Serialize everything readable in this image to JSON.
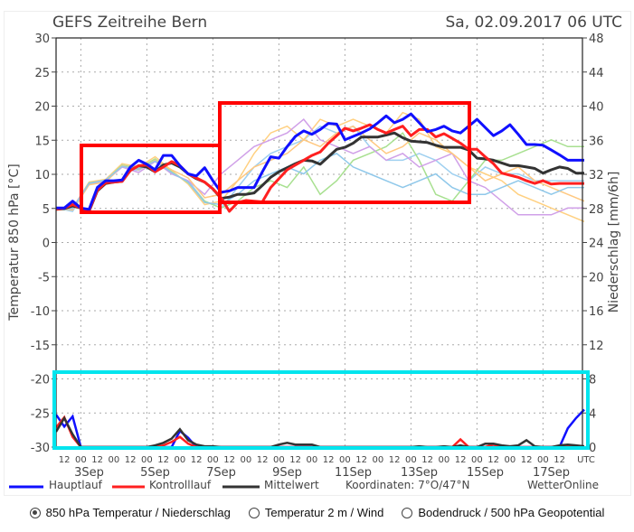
{
  "header": {
    "title": "GEFS Zeitreihe Bern",
    "run": "Sa, 02.09.2017 06 UTC"
  },
  "legend": {
    "main": "Hauptlauf",
    "control": "Kontrolllauf",
    "mean": "Mittelwert",
    "coords": "Koordinaten: 7°O/47°N",
    "brand": "WetterOnline"
  },
  "colors": {
    "main": "#1010ff",
    "control": "#ff2020",
    "mean": "#333333",
    "box_red": "#ff0000",
    "box_cyan": "#00e5ee",
    "members": [
      "#9fd0f0",
      "#ffd080",
      "#a8e090",
      "#d0a0e8",
      "#ffc880",
      "#8fc8ea"
    ]
  },
  "options": [
    {
      "label": "850 hPa Temperatur / Niederschlag",
      "selected": true
    },
    {
      "label": "Temperatur 2 m / Wind",
      "selected": false
    },
    {
      "label": "Bodendruck / 500 hPa Geopotential",
      "selected": false
    }
  ],
  "chart_data": {
    "type": "line",
    "title": "GEFS Zeitreihe Bern",
    "ylabel": "Temperatur 850 hPa [°C]",
    "y2label": "Niederschlag [mm/6h]",
    "ylim": [
      -30,
      30
    ],
    "y2lim": [
      0,
      48
    ],
    "y_ticks": [
      "30",
      "25",
      "20",
      "15",
      "10",
      "5",
      "0",
      "-5",
      "-10",
      "-15",
      "-20",
      "-25",
      "-30"
    ],
    "y2_ticks": [
      "48",
      "44",
      "40",
      "36",
      "32",
      "28",
      "24",
      "20",
      "16",
      "12",
      "8",
      "4",
      "0"
    ],
    "x_step_hours": 6,
    "x_start": "02.09.2017 06 UTC",
    "x_tick_labels": [
      "12",
      "00",
      "12",
      "00",
      "12",
      "00",
      "12",
      "00",
      "12",
      "00",
      "12",
      "00",
      "12",
      "00",
      "12",
      "00",
      "12",
      "00",
      "12",
      "00",
      "12",
      "00",
      "12",
      "00",
      "12",
      "00",
      "12",
      "00",
      "12",
      "00",
      "12"
    ],
    "x_unit": "UTC",
    "day_labels": [
      "3Sep",
      "5Sep",
      "7Sep",
      "9Sep",
      "11Sep",
      "13Sep",
      "15Sep",
      "17Sep"
    ],
    "temperature": {
      "Hauptlauf": [
        5,
        5,
        6,
        5,
        4.8,
        8,
        9,
        9,
        9.1,
        11,
        12,
        11.4,
        10.6,
        12.7,
        12.7,
        11.2,
        10,
        9.7,
        10.9,
        9,
        7.3,
        7.5,
        8,
        8,
        8,
        10.3,
        12.5,
        12.3,
        14,
        15.5,
        16.3,
        15.8,
        16.5,
        17.4,
        17.3,
        15,
        15.5,
        16,
        16.6,
        17.5,
        18.5,
        17.5,
        18,
        18.8,
        17.5,
        16.2,
        16.5,
        17,
        16.3,
        16,
        17,
        18,
        16.8,
        15.6,
        16.3,
        17.2,
        15.8,
        14.3,
        14.3,
        14.2,
        13.5,
        12.8,
        12,
        12,
        12
      ],
      "Kontrolllauf": [
        4.8,
        5,
        5.5,
        5,
        4.6,
        7.6,
        8.7,
        8.8,
        8.9,
        10.5,
        11.2,
        11.3,
        10.3,
        11,
        11.8,
        11.2,
        10,
        9.4,
        8.8,
        7.8,
        6.5,
        4.5,
        5.8,
        6.1,
        6,
        5.9,
        8,
        9.3,
        10.6,
        11.3,
        12,
        12.7,
        13.2,
        14.5,
        15.6,
        16.7,
        16.3,
        16.7,
        17.2,
        16.5,
        16,
        16.5,
        17,
        15.6,
        16.5,
        16.5,
        15.4,
        15.9,
        15.2,
        14.5,
        13.6,
        13.6,
        12.5,
        11.5,
        10.1,
        9.8,
        9.5,
        9,
        8.6,
        9,
        8.5,
        8.6,
        8.6,
        8.6,
        8.6
      ],
      "Mittelwert": [
        4.8,
        4.9,
        5.3,
        5,
        4.5,
        7.5,
        8.6,
        8.8,
        8.9,
        10.5,
        11.2,
        11,
        10.3,
        11.3,
        11.6,
        11,
        10,
        9.3,
        8.8,
        7.8,
        6.4,
        6.6,
        7,
        7,
        7.2,
        8.3,
        9.5,
        10.3,
        10.9,
        11.5,
        12,
        11.9,
        11.4,
        12.5,
        13.6,
        13.9,
        14.5,
        15.4,
        15.4,
        15.4,
        15.7,
        16,
        15.3,
        14.8,
        14.7,
        14.6,
        14.2,
        13.9,
        13.9,
        13.9,
        13.5,
        12.3,
        12.2,
        12,
        11.6,
        11.2,
        11.2,
        11,
        10.8,
        10.1,
        10.6,
        11,
        10.8,
        10.1,
        10.1
      ],
      "members_12h": [
        [
          5,
          4.5,
          8.5,
          9,
          11,
          10.5,
          12,
          10,
          9,
          6,
          5,
          8,
          11,
          13,
          14,
          15,
          17,
          16,
          17,
          14,
          12,
          12,
          13,
          12,
          10,
          9,
          11,
          10,
          10,
          9,
          9,
          9,
          9
        ],
        [
          5,
          5,
          8.8,
          9.2,
          11.5,
          11,
          12.5,
          10.5,
          8.5,
          5.5,
          6,
          9,
          13,
          16,
          17,
          15,
          18,
          17,
          18,
          17,
          16,
          19,
          18,
          14,
          13,
          11,
          10,
          9,
          7,
          6,
          5,
          4,
          3
        ],
        [
          5,
          4.8,
          8.7,
          9,
          11.3,
          10.8,
          12.2,
          10.3,
          8.7,
          6,
          5,
          6,
          8,
          9,
          8,
          11,
          7,
          9,
          12,
          13,
          14,
          16,
          12,
          7,
          6,
          9,
          12,
          12,
          13,
          14,
          15,
          14,
          14
        ],
        [
          5,
          5,
          8.6,
          8.9,
          11,
          10.2,
          11.8,
          10,
          9,
          7,
          10,
          12,
          14,
          15,
          16,
          18,
          15,
          14,
          13,
          14,
          12,
          13,
          11,
          12,
          13,
          9,
          8,
          6,
          4,
          4,
          4,
          5,
          5
        ],
        [
          5,
          4.7,
          8.4,
          8.8,
          11.2,
          10.6,
          12,
          10.6,
          9.4,
          6.5,
          7,
          9,
          11,
          12,
          13,
          15,
          14,
          16,
          17,
          15,
          13,
          14,
          16,
          15,
          13,
          11,
          9,
          10,
          11,
          9,
          8,
          7,
          6
        ],
        [
          5,
          4.9,
          8.6,
          9.1,
          11.1,
          10.7,
          11.9,
          10.2,
          8.8,
          5.8,
          5.5,
          7,
          9,
          10,
          11,
          10,
          12,
          13,
          11,
          10,
          9,
          8,
          9,
          10,
          8,
          7,
          7,
          8,
          9,
          8,
          7,
          8,
          8
        ]
      ]
    },
    "precipitation": {
      "Hauptlauf": [
        3.8,
        2.4,
        3.6,
        0,
        0,
        0,
        0,
        0,
        0,
        0,
        0,
        0,
        0,
        0,
        0,
        1.9,
        1.1,
        0,
        0,
        0,
        0,
        0,
        0,
        0,
        0,
        0,
        0,
        0,
        0,
        0,
        0,
        0,
        0,
        0,
        0,
        0,
        0,
        0,
        0,
        0,
        0,
        0,
        0,
        0,
        0,
        0,
        0,
        0,
        0,
        0,
        0,
        0,
        0,
        0,
        0,
        0,
        0,
        0,
        0,
        0,
        0,
        0,
        2.2,
        3.4,
        4.4
      ],
      "Kontrolllauf": [
        2.3,
        3.5,
        1.2,
        0,
        0,
        0,
        0,
        0,
        0,
        0,
        0,
        0,
        0,
        0.2,
        0.6,
        1.2,
        0.4,
        0,
        0,
        0,
        0,
        0,
        0,
        0,
        0,
        0,
        0,
        0,
        0,
        0,
        0,
        0,
        0,
        0,
        0,
        0,
        0,
        0,
        0,
        0,
        0,
        0,
        0,
        0,
        0,
        0,
        0,
        0,
        0,
        0.9,
        0,
        0,
        0,
        0.3,
        0,
        0,
        0,
        0,
        0,
        0,
        0,
        0,
        0.1,
        0,
        0
      ],
      "Mittelwert": [
        1.8,
        3.4,
        1.5,
        0,
        0,
        0,
        0,
        0,
        0,
        0,
        0,
        0,
        0.2,
        0.5,
        1,
        2.1,
        0.8,
        0.3,
        0.1,
        0.1,
        0,
        0,
        0,
        0,
        0,
        0,
        0,
        0.3,
        0.5,
        0.3,
        0.3,
        0.3,
        0,
        0,
        0,
        0,
        0,
        0,
        0,
        0,
        0,
        0,
        0,
        0,
        0.1,
        0,
        0,
        0.1,
        0,
        0.2,
        0,
        0,
        0.4,
        0.4,
        0.2,
        0.1,
        0.2,
        0.8,
        0.1,
        0,
        0,
        0.2,
        0.3,
        0.2,
        0.1
      ]
    },
    "grid": true
  }
}
